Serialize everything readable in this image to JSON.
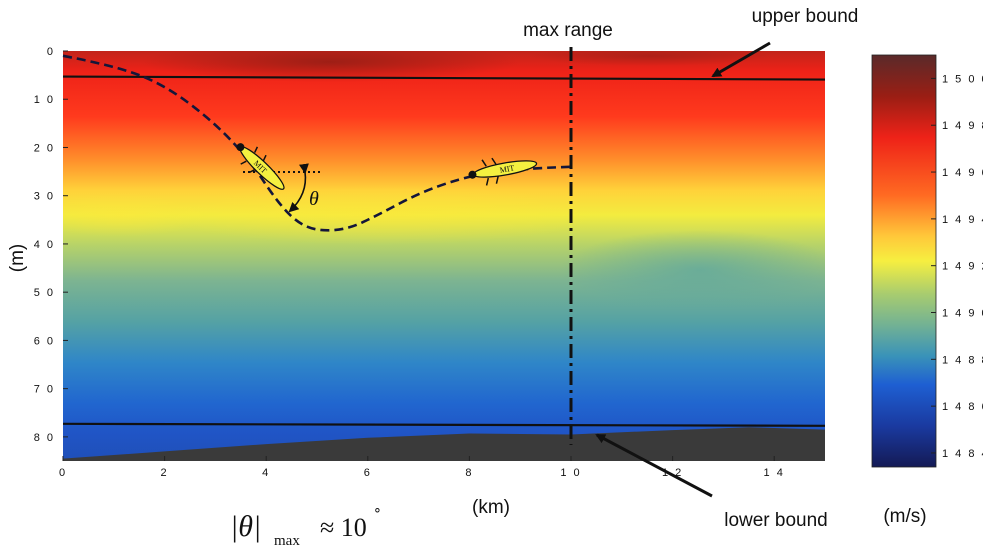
{
  "figure": {
    "type": "sound-speed-section",
    "y_label": "(m)",
    "x_label": "(km)",
    "x_ticks": [
      "0",
      "2",
      "4",
      "6",
      "8",
      "1 0",
      "1 2",
      "1 4"
    ],
    "x_tick_values": [
      0,
      2,
      4,
      6,
      8,
      10,
      12,
      14
    ],
    "y_ticks": [
      "0",
      "1 0",
      "2 0",
      "3 0",
      "4 0",
      "5 0",
      "6 0",
      "7 0",
      "8 0"
    ],
    "y_tick_values": [
      0,
      10,
      20,
      30,
      40,
      50,
      60,
      70,
      80
    ],
    "x_range_km": [
      0,
      15
    ],
    "y_range_m": [
      0,
      85
    ],
    "colorbar": {
      "unit_label": "(m/s)",
      "ticks": [
        "1 5 0 0",
        "1 4 9 8",
        "1 4 9 6",
        "1 4 9 4",
        "1 4 9 2",
        "1 4 9 0",
        "1 4 8 8",
        "1 4 8 6",
        "1 4 8 4"
      ],
      "tick_values": [
        1500,
        1498,
        1496,
        1494,
        1492,
        1490,
        1488,
        1486,
        1484
      ],
      "range": [
        1483.4,
        1501
      ],
      "colors": [
        "#1a1a66",
        "#1d4fd0",
        "#2e8bc8",
        "#4aa79f",
        "#83b98c",
        "#d6e24c",
        "#ffe83a",
        "#ffa62e",
        "#ff4a1e",
        "#ee2218",
        "#9a1e14",
        "#5a2a2a"
      ]
    },
    "annotations": {
      "max_range": "max range",
      "upper_bound": "upper bound",
      "lower_bound": "lower bound",
      "theta": "θ",
      "vehicle_label": "MIT",
      "equation": {
        "lhs": "|θ|",
        "subscript": "max",
        "rel": "≈ 10",
        "sup": "∘"
      }
    },
    "lines": {
      "upper_bound_depth_m": 5.3,
      "lower_bound_depth_m": 77.5,
      "max_range_km": 10
    },
    "trajectory_km_m": [
      [
        0,
        1
      ],
      [
        1,
        3
      ],
      [
        2,
        7
      ],
      [
        3,
        15
      ],
      [
        3.7,
        23
      ],
      [
        4.2,
        31
      ],
      [
        4.6,
        35.5
      ],
      [
        5,
        37.3
      ],
      [
        5.6,
        37
      ],
      [
        6.2,
        34
      ],
      [
        7,
        29.5
      ],
      [
        7.8,
        26.5
      ],
      [
        8.5,
        25
      ],
      [
        9.3,
        24.3
      ],
      [
        10,
        24
      ]
    ],
    "seabed_km_m": [
      [
        0,
        84.5
      ],
      [
        2,
        83
      ],
      [
        4,
        81.5
      ],
      [
        6,
        80.2
      ],
      [
        8,
        79.3
      ],
      [
        10,
        79.5
      ],
      [
        12,
        78.6
      ],
      [
        13.5,
        78
      ],
      [
        15,
        78.5
      ]
    ],
    "colors": {
      "accent_line": "#111111",
      "seabed": "#3a3a3a",
      "vehicle_body": "#f4f040"
    }
  }
}
